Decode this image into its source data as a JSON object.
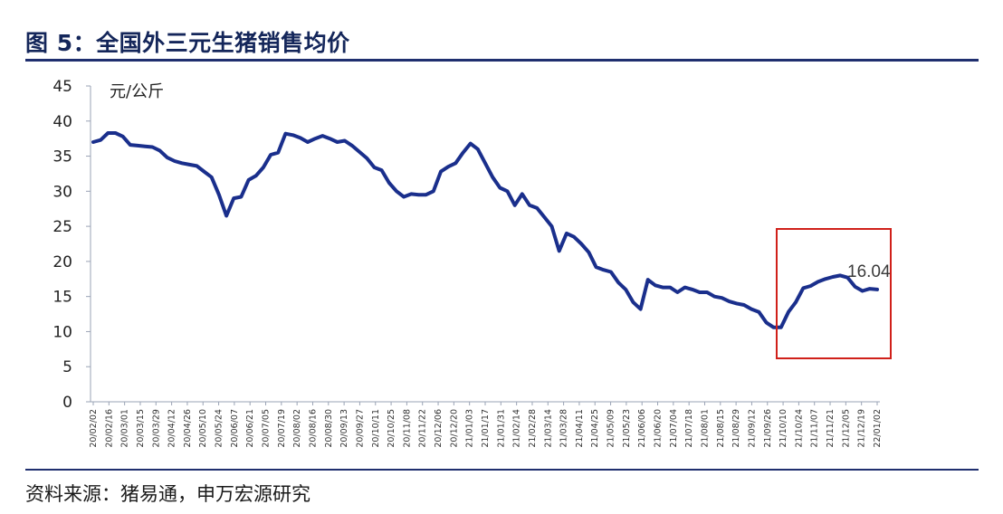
{
  "title": "图 5：全国外三元生猪销售均价",
  "source": "资料来源：猪易通，申万宏源研究",
  "chart_data": {
    "type": "line",
    "unit_label": "元/公斤",
    "ylim": [
      0,
      45
    ],
    "yticks": [
      0,
      5,
      10,
      15,
      20,
      25,
      30,
      35,
      40,
      45
    ],
    "grid": false,
    "line_color": "#1a2f8c",
    "highlight_color": "#d0201a",
    "annotation": "16.04",
    "annotation_index": 127,
    "x_tick_labels": [
      "20/02/02",
      "20/02/16",
      "20/03/01",
      "20/03/15",
      "20/03/29",
      "20/04/12",
      "20/04/26",
      "20/05/10",
      "20/05/24",
      "20/06/07",
      "20/06/21",
      "20/07/05",
      "20/07/19",
      "20/08/02",
      "20/08/16",
      "20/08/30",
      "20/09/13",
      "20/09/27",
      "20/10/11",
      "20/10/25",
      "20/11/08",
      "20/11/22",
      "20/12/06",
      "20/12/20",
      "21/01/03",
      "21/01/17",
      "21/01/31",
      "21/02/14",
      "21/02/28",
      "21/03/14",
      "21/03/28",
      "21/04/11",
      "21/04/25",
      "21/05/09",
      "21/05/23",
      "21/06/06",
      "21/06/20",
      "21/07/04",
      "21/07/18",
      "21/08/01",
      "21/08/15",
      "21/08/29",
      "21/09/12",
      "21/09/26",
      "21/10/10",
      "21/10/24",
      "21/11/07",
      "21/11/21",
      "21/12/05",
      "21/12/19",
      "22/01/02"
    ],
    "values": [
      37.0,
      37.3,
      38.3,
      38.3,
      37.8,
      36.6,
      36.5,
      36.4,
      36.3,
      35.8,
      34.8,
      34.3,
      34.0,
      33.8,
      33.6,
      32.8,
      32.0,
      29.5,
      26.5,
      29.0,
      29.2,
      31.6,
      32.2,
      33.4,
      35.2,
      35.5,
      38.2,
      38.0,
      37.6,
      37.0,
      37.5,
      37.9,
      37.5,
      37.0,
      37.2,
      36.5,
      35.6,
      34.7,
      33.4,
      33.0,
      31.2,
      30.0,
      29.2,
      29.6,
      29.5,
      29.5,
      30.0,
      32.8,
      33.5,
      34.0,
      35.5,
      36.8,
      36.0,
      34.0,
      32.0,
      30.5,
      30.0,
      28.0,
      29.6,
      28.0,
      27.6,
      26.3,
      25.0,
      21.5,
      24.0,
      23.5,
      22.5,
      21.3,
      19.2,
      18.8,
      18.5,
      17.0,
      16.0,
      14.2,
      13.2,
      17.4,
      16.6,
      16.3,
      16.3,
      15.6,
      16.3,
      16.0,
      15.6,
      15.6,
      15.0,
      14.8,
      14.3,
      14.0,
      13.8,
      13.2,
      12.8,
      11.3,
      10.6,
      10.6,
      12.8,
      14.2,
      16.2,
      16.5,
      17.1,
      17.5,
      17.8,
      18.0,
      17.7,
      16.4,
      15.8,
      16.1,
      16.0
    ]
  }
}
